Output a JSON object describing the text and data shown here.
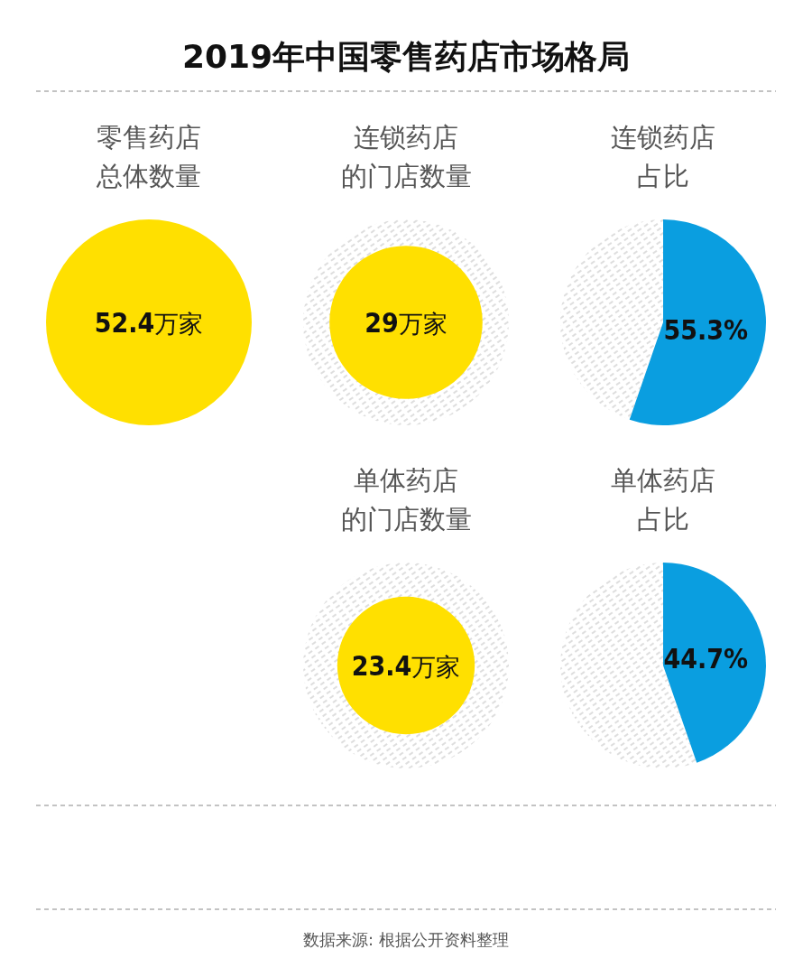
{
  "chart_data": [
    {
      "type": "other",
      "title": "2019年中国零售药店市场格局",
      "annotations": [
        "数据来源: 根据公开资料整理"
      ]
    },
    {
      "type": "other",
      "title": "零售药店总体数量",
      "categories": [
        null
      ],
      "values": [
        52.4
      ],
      "value_labels": [
        "52.4万家"
      ],
      "colors": [
        "#ffe000"
      ]
    },
    {
      "type": "other",
      "title": "连锁药店的门店数量",
      "categories": [
        null
      ],
      "values": [
        29
      ],
      "value_labels": [
        "29万家"
      ],
      "colors": [
        "#ffe000"
      ]
    },
    {
      "type": "pie",
      "title": "连锁药店占比",
      "categories": [
        null,
        null
      ],
      "values": [
        55.3,
        44.7
      ],
      "value_labels": [
        "55.3%",
        null
      ],
      "colors": [
        "#0a9ee0",
        "#d9d9d9"
      ]
    },
    {
      "type": "other",
      "title": "单体药店的门店数量",
      "categories": [
        null
      ],
      "values": [
        23.4
      ],
      "value_labels": [
        "23.4万家"
      ],
      "colors": [
        "#ffe000"
      ]
    },
    {
      "type": "pie",
      "title": "单体药店占比",
      "categories": [
        null,
        null
      ],
      "values": [
        44.7,
        55.3
      ],
      "value_labels": [
        "44.7%",
        null
      ],
      "colors": [
        "#0a9ee0",
        "#d9d9d9"
      ]
    }
  ]
}
